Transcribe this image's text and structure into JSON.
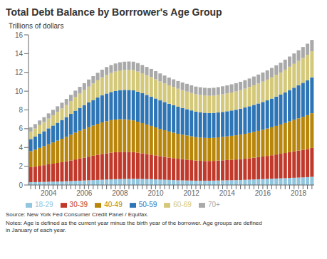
{
  "chart_data": {
    "type": "bar",
    "title": "Total Debt Balance by Borrrower's Age Group",
    "y_label": "Trillions of dollars",
    "annotations": [
      "Source: New York Fed Consumer Credit Panel / Equifax.",
      "Notes: Age is defined as the current year minus the birth year of the borrower. Age groups are defined\nin January of each year."
    ],
    "categories": [
      null,
      null,
      null,
      null,
      "2004",
      null,
      null,
      null,
      null,
      null,
      null,
      null,
      "2006",
      null,
      null,
      null,
      null,
      null,
      null,
      null,
      "2008",
      null,
      null,
      null,
      null,
      null,
      null,
      null,
      "2010",
      null,
      null,
      null,
      null,
      null,
      null,
      null,
      "2012",
      null,
      null,
      null,
      null,
      null,
      null,
      null,
      "2014",
      null,
      null,
      null,
      null,
      null,
      null,
      null,
      "2016",
      null,
      null,
      null,
      null,
      null,
      null,
      null,
      "2018",
      null,
      null,
      null
    ],
    "stacked": true,
    "grid": false,
    "legend": "bottom",
    "ylim": [
      0,
      16
    ],
    "yticks": [
      0,
      2,
      4,
      6,
      8,
      10,
      12,
      14,
      16
    ],
    "series": [
      {
        "name": "18-29",
        "color": "#92c5de",
        "values": [
          0.3,
          0.31,
          0.32,
          0.33,
          0.35,
          0.36,
          0.37,
          0.38,
          0.4,
          0.42,
          0.44,
          0.46,
          0.48,
          0.5,
          0.52,
          0.54,
          0.56,
          0.58,
          0.6,
          0.62,
          0.63,
          0.64,
          0.65,
          0.66,
          0.65,
          0.64,
          0.63,
          0.62,
          0.6,
          0.58,
          0.56,
          0.54,
          0.52,
          0.5,
          0.49,
          0.48,
          0.47,
          0.46,
          0.46,
          0.46,
          0.46,
          0.47,
          0.48,
          0.49,
          0.5,
          0.51,
          0.52,
          0.53,
          0.55,
          0.57,
          0.59,
          0.61,
          0.63,
          0.65,
          0.67,
          0.69,
          0.71,
          0.73,
          0.75,
          0.77,
          0.79,
          0.81,
          0.84,
          0.87
        ]
      },
      {
        "name": "30-39",
        "color": "#c0392b",
        "values": [
          1.6,
          1.65,
          1.72,
          1.78,
          1.85,
          1.92,
          1.98,
          2.05,
          2.12,
          2.2,
          2.28,
          2.36,
          2.44,
          2.52,
          2.6,
          2.68,
          2.75,
          2.8,
          2.85,
          2.88,
          2.9,
          2.9,
          2.88,
          2.85,
          2.8,
          2.74,
          2.68,
          2.62,
          2.56,
          2.5,
          2.44,
          2.38,
          2.34,
          2.3,
          2.26,
          2.22,
          2.18,
          2.14,
          2.12,
          2.1,
          2.1,
          2.1,
          2.12,
          2.14,
          2.16,
          2.18,
          2.2,
          2.22,
          2.25,
          2.28,
          2.32,
          2.36,
          2.4,
          2.45,
          2.5,
          2.56,
          2.62,
          2.68,
          2.75,
          2.82,
          2.88,
          2.94,
          3.0,
          3.08
        ]
      },
      {
        "name": "40-49",
        "color": "#b8860b",
        "values": [
          1.7,
          1.8,
          1.92,
          2.02,
          2.14,
          2.26,
          2.38,
          2.5,
          2.62,
          2.74,
          2.86,
          2.96,
          3.05,
          3.14,
          3.22,
          3.3,
          3.36,
          3.42,
          3.46,
          3.48,
          3.48,
          3.46,
          3.42,
          3.38,
          3.3,
          3.22,
          3.14,
          3.06,
          2.98,
          2.9,
          2.84,
          2.78,
          2.72,
          2.66,
          2.62,
          2.58,
          2.54,
          2.5,
          2.48,
          2.46,
          2.45,
          2.46,
          2.48,
          2.5,
          2.52,
          2.55,
          2.58,
          2.62,
          2.66,
          2.7,
          2.75,
          2.8,
          2.86,
          2.92,
          2.98,
          3.05,
          3.12,
          3.2,
          3.28,
          3.36,
          3.44,
          3.52,
          3.6,
          3.7
        ]
      },
      {
        "name": "50-59",
        "color": "#2e75b6",
        "values": [
          1.3,
          1.4,
          1.5,
          1.6,
          1.7,
          1.8,
          1.9,
          2.0,
          2.1,
          2.22,
          2.34,
          2.44,
          2.54,
          2.64,
          2.72,
          2.8,
          2.88,
          2.95,
          3.0,
          3.05,
          3.1,
          3.14,
          3.18,
          3.2,
          3.2,
          3.18,
          3.15,
          3.12,
          3.08,
          3.04,
          3.0,
          2.96,
          2.92,
          2.88,
          2.84,
          2.8,
          2.76,
          2.72,
          2.7,
          2.68,
          2.66,
          2.65,
          2.65,
          2.66,
          2.68,
          2.7,
          2.72,
          2.76,
          2.8,
          2.84,
          2.88,
          2.92,
          2.96,
          3.0,
          3.06,
          3.12,
          3.18,
          3.26,
          3.34,
          3.42,
          3.52,
          3.62,
          3.72,
          3.82
        ]
      },
      {
        "name": "60-69",
        "color": "#d4c97a",
        "values": [
          0.8,
          0.86,
          0.92,
          0.98,
          1.04,
          1.1,
          1.16,
          1.22,
          1.28,
          1.36,
          1.44,
          1.52,
          1.6,
          1.68,
          1.76,
          1.84,
          1.92,
          1.98,
          2.02,
          2.06,
          2.1,
          2.12,
          2.14,
          2.15,
          2.14,
          2.12,
          2.1,
          2.08,
          2.05,
          2.02,
          1.99,
          1.96,
          1.94,
          1.92,
          1.9,
          1.88,
          1.86,
          1.85,
          1.84,
          1.84,
          1.84,
          1.85,
          1.86,
          1.88,
          1.9,
          1.92,
          1.95,
          1.98,
          2.01,
          2.05,
          2.09,
          2.13,
          2.17,
          2.21,
          2.26,
          2.31,
          2.36,
          2.42,
          2.48,
          2.54,
          2.6,
          2.66,
          2.72,
          2.78
        ]
      },
      {
        "name": "70+",
        "color": "#a9a9a9",
        "values": [
          0.45,
          0.47,
          0.5,
          0.52,
          0.55,
          0.57,
          0.6,
          0.62,
          0.65,
          0.67,
          0.7,
          0.72,
          0.74,
          0.76,
          0.78,
          0.8,
          0.82,
          0.84,
          0.85,
          0.86,
          0.87,
          0.88,
          0.89,
          0.9,
          0.9,
          0.89,
          0.88,
          0.87,
          0.86,
          0.85,
          0.84,
          0.83,
          0.82,
          0.82,
          0.82,
          0.82,
          0.82,
          0.82,
          0.82,
          0.82,
          0.82,
          0.83,
          0.84,
          0.85,
          0.86,
          0.87,
          0.88,
          0.89,
          0.9,
          0.91,
          0.93,
          0.95,
          0.97,
          0.99,
          1.01,
          1.03,
          1.05,
          1.07,
          1.09,
          1.11,
          1.13,
          1.15,
          1.18,
          1.21
        ]
      }
    ]
  }
}
